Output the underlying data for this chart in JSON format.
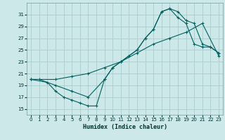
{
  "background_color": "#cce8e8",
  "grid_color": "#aacccc",
  "line_color": "#006060",
  "xlabel": "Humidex (Indice chaleur)",
  "ylim": [
    14,
    33
  ],
  "xlim": [
    -0.5,
    23.5
  ],
  "yticks": [
    15,
    17,
    19,
    21,
    23,
    25,
    27,
    29,
    31
  ],
  "xticks": [
    0,
    1,
    2,
    3,
    4,
    5,
    6,
    7,
    8,
    9,
    10,
    11,
    12,
    13,
    14,
    15,
    16,
    17,
    18,
    19,
    20,
    21,
    22,
    23
  ],
  "line1_x": [
    0,
    1,
    3,
    5,
    7,
    9,
    10,
    11,
    12,
    13,
    14,
    15,
    16,
    17,
    18,
    19,
    20,
    21,
    22,
    23
  ],
  "line1_y": [
    20,
    20,
    19,
    18,
    17,
    20,
    22,
    23,
    24,
    25,
    27,
    28.5,
    31.5,
    32,
    31.5,
    30,
    29.5,
    26,
    25.5,
    24.5
  ],
  "line2_x": [
    0,
    3,
    5,
    7,
    9,
    11,
    13,
    15,
    17,
    19,
    21,
    23
  ],
  "line2_y": [
    20,
    20,
    20.5,
    21,
    22,
    23,
    24.5,
    26,
    27,
    28,
    29.5,
    24
  ],
  "line3_x": [
    0,
    2,
    3,
    4,
    5,
    6,
    7,
    8,
    9,
    10,
    11,
    12,
    13,
    14,
    15,
    16,
    17,
    18,
    19,
    20,
    21,
    22,
    23
  ],
  "line3_y": [
    20,
    19.5,
    18,
    17,
    16.5,
    16,
    15.5,
    15.5,
    20,
    22,
    23,
    24,
    25,
    27,
    28.5,
    31.5,
    32,
    30.5,
    29.5,
    26,
    25.5,
    25.5,
    24.5
  ]
}
